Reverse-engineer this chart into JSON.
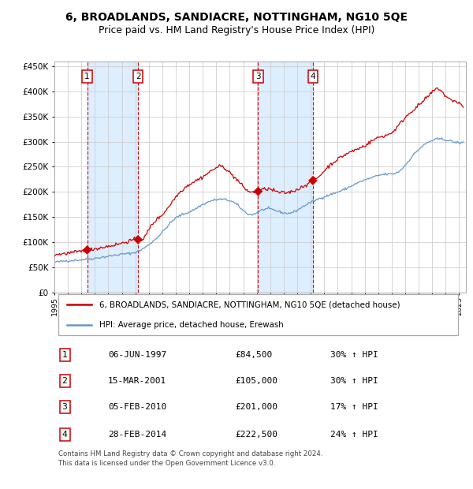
{
  "title1": "6, BROADLANDS, SANDIACRE, NOTTINGHAM, NG10 5QE",
  "title2": "Price paid vs. HM Land Registry's House Price Index (HPI)",
  "legend_line1": "6, BROADLANDS, SANDIACRE, NOTTINGHAM, NG10 5QE (detached house)",
  "legend_line2": "HPI: Average price, detached house, Erewash",
  "footer": "Contains HM Land Registry data © Crown copyright and database right 2024.\nThis data is licensed under the Open Government Licence v3.0.",
  "transactions": [
    {
      "num": 1,
      "date": "06-JUN-1997",
      "price": 84500,
      "pct": "30%",
      "date_x": 1997.43
    },
    {
      "num": 2,
      "date": "15-MAR-2001",
      "price": 105000,
      "pct": "30%",
      "date_x": 2001.2
    },
    {
      "num": 3,
      "date": "05-FEB-2010",
      "price": 201000,
      "pct": "17%",
      "date_x": 2010.1
    },
    {
      "num": 4,
      "date": "28-FEB-2014",
      "price": 222500,
      "pct": "24%",
      "date_x": 2014.16
    }
  ],
  "property_color": "#cc0000",
  "hpi_color": "#6699cc",
  "shade_color": "#ddeeff",
  "dashed_color": "#cc0000",
  "grid_color": "#cccccc",
  "ylim": [
    0,
    460000
  ],
  "yticks": [
    0,
    50000,
    100000,
    150000,
    200000,
    250000,
    300000,
    350000,
    400000,
    450000
  ],
  "xlim_start": 1995.0,
  "xlim_end": 2025.5,
  "hpi_anchors_x": [
    1995.0,
    1996.0,
    1997.0,
    1998.0,
    1999.0,
    2000.0,
    2001.0,
    2002.0,
    2003.0,
    2004.0,
    2005.0,
    2006.0,
    2007.5,
    2008.5,
    2009.5,
    2010.5,
    2011.5,
    2012.5,
    2013.5,
    2014.5,
    2015.5,
    2016.5,
    2017.5,
    2018.5,
    2019.5,
    2020.5,
    2021.5,
    2022.5,
    2023.5,
    2024.5,
    2025.3
  ],
  "hpi_anchors_y": [
    60000,
    63000,
    65000,
    68000,
    72000,
    76000,
    80000,
    95000,
    120000,
    148000,
    160000,
    175000,
    185000,
    175000,
    155000,
    165000,
    162000,
    158000,
    172000,
    185000,
    195000,
    205000,
    218000,
    228000,
    235000,
    240000,
    270000,
    295000,
    305000,
    300000,
    298000
  ],
  "prop_anchors_x": [
    1995.0,
    1996.0,
    1997.0,
    1997.43,
    1998.0,
    1999.0,
    2000.0,
    2001.2,
    2001.7,
    2002.0,
    2003.0,
    2004.0,
    2005.0,
    2006.0,
    2007.0,
    2007.5,
    2008.0,
    2008.5,
    2009.0,
    2009.5,
    2010.1,
    2010.5,
    2011.0,
    2011.5,
    2012.0,
    2012.5,
    2013.0,
    2013.5,
    2014.0,
    2014.16,
    2014.5,
    2015.0,
    2016.0,
    2017.0,
    2018.0,
    2019.0,
    2020.0,
    2021.0,
    2022.0,
    2023.0,
    2023.5,
    2024.0,
    2024.5,
    2025.3
  ],
  "prop_anchors_y": [
    75000,
    78000,
    82000,
    84500,
    87000,
    92000,
    98000,
    105000,
    110000,
    125000,
    155000,
    190000,
    215000,
    230000,
    248000,
    250000,
    238000,
    225000,
    210000,
    200000,
    201000,
    205000,
    205000,
    200000,
    198000,
    200000,
    205000,
    212000,
    220000,
    222500,
    228000,
    242000,
    265000,
    280000,
    292000,
    308000,
    318000,
    348000,
    372000,
    398000,
    405000,
    390000,
    382000,
    368000
  ]
}
